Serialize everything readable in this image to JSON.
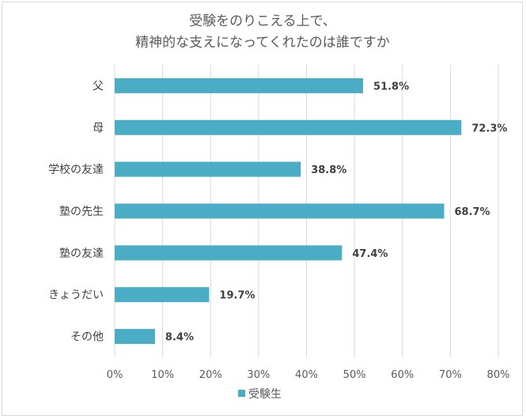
{
  "chart_data": {
    "type": "bar",
    "orientation": "horizontal",
    "title_lines": [
      "受験をのりこえる上で、",
      "精神的な支えになってくれたのは誰ですか"
    ],
    "categories": [
      "父",
      "母",
      "学校の友達",
      "塾の先生",
      "塾の友達",
      "きょうだい",
      "その他"
    ],
    "series": [
      {
        "name": "受験生",
        "color": "#4bacc6",
        "values": [
          51.8,
          72.3,
          38.8,
          68.7,
          47.4,
          19.7,
          8.4
        ],
        "labels": [
          "51.8%",
          "72.3%",
          "38.8%",
          "68.7%",
          "47.4%",
          "19.7%",
          "8.4%"
        ]
      }
    ],
    "xlim": [
      0,
      80
    ],
    "xticks": [
      "0%",
      "10%",
      "20%",
      "30%",
      "40%",
      "50%",
      "60%",
      "70%",
      "80%"
    ],
    "grid": true,
    "legend_position": "bottom"
  }
}
